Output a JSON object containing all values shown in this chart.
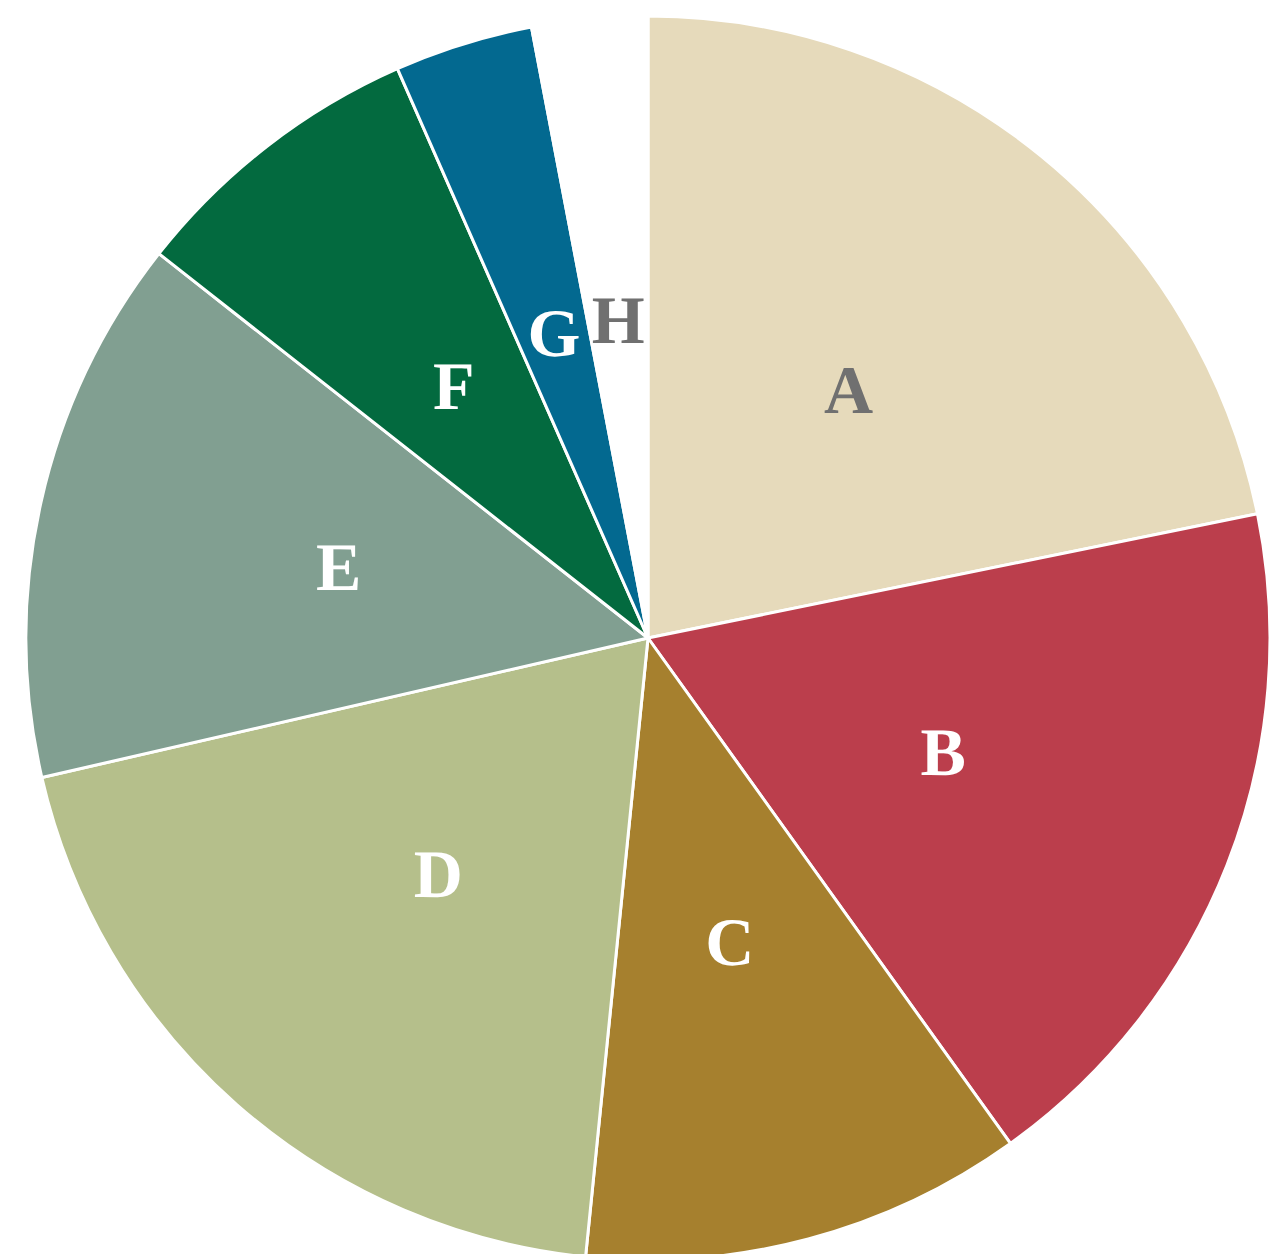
{
  "chart_data": {
    "type": "pie",
    "categories": [
      "A",
      "B",
      "C",
      "D",
      "E",
      "F",
      "G",
      "H"
    ],
    "values": [
      21.8,
      18.3,
      11.5,
      19.8,
      14.2,
      7.8,
      3.6,
      3.0
    ],
    "colors": [
      "#e6dabb",
      "#bb3e4c",
      "#a6802e",
      "#b5bf8b",
      "#819f91",
      "#036a3f",
      "#036990",
      "#ffffff"
    ],
    "legend": false
  }
}
